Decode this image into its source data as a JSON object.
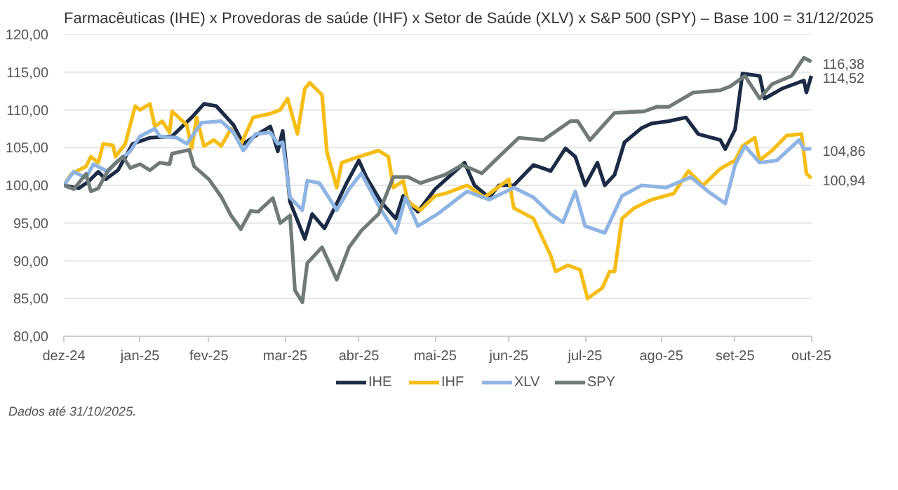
{
  "chart_data": {
    "type": "line",
    "title": "Farmacêuticas (IHE) x Provedoras de saúde (IHF) x Setor de Saúde (XLV) x S&P 500 (SPY) – Base 100 = 31/12/2025",
    "xlim": [
      "2024-12-31",
      "2025-10-31"
    ],
    "xticks": [
      {
        "value": "2024-12-31",
        "label": "dez-24"
      },
      {
        "value": "2025-01-31",
        "label": "jan-25"
      },
      {
        "value": "2025-02-28",
        "label": "fev-25"
      },
      {
        "value": "2025-03-31",
        "label": "mar-25"
      },
      {
        "value": "2025-04-30",
        "label": "abr-25"
      },
      {
        "value": "2025-05-31",
        "label": "mai-25"
      },
      {
        "value": "2025-06-30",
        "label": "jun-25"
      },
      {
        "value": "2025-07-31",
        "label": "jul-25"
      },
      {
        "value": "2025-08-31",
        "label": "ago-25"
      },
      {
        "value": "2025-09-30",
        "label": "set-25"
      },
      {
        "value": "2025-10-31",
        "label": "out-25"
      }
    ],
    "ylim": [
      80,
      120
    ],
    "yticks": [
      {
        "value": 80,
        "label": "80,00"
      },
      {
        "value": 85,
        "label": "85,00"
      },
      {
        "value": 90,
        "label": "90,00"
      },
      {
        "value": 95,
        "label": "95,00"
      },
      {
        "value": 100,
        "label": "100,00"
      },
      {
        "value": 105,
        "label": "105,00"
      },
      {
        "value": 110,
        "label": "110,00"
      },
      {
        "value": 115,
        "label": "115,00"
      },
      {
        "value": 120,
        "label": "120,00"
      }
    ],
    "grid": "y",
    "legend": "bottom",
    "line_style": "solid",
    "marker": "none",
    "series": [
      {
        "name": "IHE",
        "color": "#1c2b45",
        "x": [
          "2024-12-31",
          "2025-01-06",
          "2025-01-10",
          "2025-01-14",
          "2025-01-17",
          "2025-01-22",
          "2025-01-28",
          "2025-02-04",
          "2025-02-13",
          "2025-02-21",
          "2025-02-26",
          "2025-03-03",
          "2025-03-10",
          "2025-03-14",
          "2025-03-21",
          "2025-03-25",
          "2025-03-28",
          "2025-03-30",
          "2025-04-02",
          "2025-04-08",
          "2025-04-11",
          "2025-04-16",
          "2025-04-21",
          "2025-04-25",
          "2025-04-30",
          "2025-05-03",
          "2025-05-09",
          "2025-05-15",
          "2025-05-18",
          "2025-05-24",
          "2025-05-31",
          "2025-06-12",
          "2025-06-16",
          "2025-06-22",
          "2025-06-26",
          "2025-07-02",
          "2025-07-10",
          "2025-07-17",
          "2025-07-23",
          "2025-07-27",
          "2025-07-31",
          "2025-08-05",
          "2025-08-08",
          "2025-08-12",
          "2025-08-16",
          "2025-08-23",
          "2025-08-27",
          "2025-09-03",
          "2025-09-10",
          "2025-09-15",
          "2025-09-24",
          "2025-09-26",
          "2025-09-30",
          "2025-10-03",
          "2025-10-10",
          "2025-10-12",
          "2025-10-19",
          "2025-10-28",
          "2025-10-29",
          "2025-10-31"
        ],
        "values": [
          100,
          99.6,
          100.5,
          101.8,
          100.8,
          102.0,
          105.5,
          106.3,
          106.5,
          109.0,
          110.8,
          110.5,
          108.0,
          105.5,
          107.0,
          107.8,
          104.5,
          107.2,
          97.8,
          92.9,
          96.2,
          94.3,
          97.6,
          100.3,
          103.3,
          101.1,
          97.8,
          95.6,
          98.6,
          96.5,
          99.5,
          103.0,
          100.0,
          98.4,
          100.0,
          100.0,
          102.7,
          101.9,
          104.9,
          103.8,
          100.0,
          103.0,
          100.0,
          101.4,
          105.7,
          107.6,
          108.2,
          108.5,
          109.0,
          106.8,
          106.0,
          104.8,
          107.4,
          114.8,
          114.5,
          111.5,
          112.8,
          113.9,
          112.3,
          114.52
        ]
      },
      {
        "name": "IHF",
        "color": "#f6bd16",
        "x": [
          "2024-12-31",
          "2025-01-03",
          "2025-01-09",
          "2025-01-11",
          "2025-01-14",
          "2025-01-16",
          "2025-01-20",
          "2025-01-21",
          "2025-01-25",
          "2025-01-29",
          "2025-01-31",
          "2025-02-04",
          "2025-02-06",
          "2025-02-09",
          "2025-02-12",
          "2025-02-13",
          "2025-02-19",
          "2025-02-21",
          "2025-02-23",
          "2025-02-26",
          "2025-03-02",
          "2025-03-05",
          "2025-03-09",
          "2025-03-13",
          "2025-03-18",
          "2025-03-25",
          "2025-03-29",
          "2025-04-01",
          "2025-04-05",
          "2025-04-08",
          "2025-04-10",
          "2025-04-15",
          "2025-04-17",
          "2025-04-21",
          "2025-04-23",
          "2025-04-30",
          "2025-05-08",
          "2025-05-12",
          "2025-05-14",
          "2025-05-18",
          "2025-05-20",
          "2025-05-25",
          "2025-05-31",
          "2025-06-04",
          "2025-06-13",
          "2025-06-20",
          "2025-06-30",
          "2025-07-02",
          "2025-07-10",
          "2025-07-17",
          "2025-07-19",
          "2025-07-24",
          "2025-07-29",
          "2025-08-01",
          "2025-08-07",
          "2025-08-10",
          "2025-08-12",
          "2025-08-15",
          "2025-08-20",
          "2025-08-27",
          "2025-09-05",
          "2025-09-11",
          "2025-09-17",
          "2025-09-24",
          "2025-09-30",
          "2025-10-03",
          "2025-10-08",
          "2025-10-10",
          "2025-10-15",
          "2025-10-21",
          "2025-10-27",
          "2025-10-29",
          "2025-10-31"
        ],
        "values": [
          100,
          101.5,
          102.5,
          103.8,
          103.0,
          105.5,
          105.3,
          103.8,
          105.5,
          110.5,
          110.0,
          110.8,
          107.8,
          108.5,
          107.0,
          109.8,
          108.0,
          104.9,
          109.0,
          105.2,
          106.0,
          105.2,
          107.5,
          105.4,
          109.0,
          109.5,
          110.0,
          111.5,
          106.8,
          112.8,
          113.6,
          112.0,
          104.4,
          99.7,
          103.0,
          103.8,
          104.6,
          103.8,
          99.7,
          100.6,
          97.8,
          96.7,
          98.6,
          98.9,
          100.0,
          98.4,
          100.8,
          97.0,
          95.6,
          90.7,
          88.6,
          89.4,
          88.8,
          85.0,
          86.4,
          88.6,
          88.6,
          95.6,
          97.0,
          98.1,
          98.9,
          101.9,
          100.0,
          102.2,
          103.3,
          105.2,
          106.3,
          103.3,
          104.6,
          106.6,
          106.8,
          101.6,
          100.94
        ]
      },
      {
        "name": "XLV",
        "color": "#8eb4e3",
        "x": [
          "2024-12-31",
          "2025-01-04",
          "2025-01-09",
          "2025-01-12",
          "2025-01-18",
          "2025-01-21",
          "2025-01-27",
          "2025-01-31",
          "2025-02-06",
          "2025-02-08",
          "2025-02-15",
          "2025-02-19",
          "2025-02-25",
          "2025-03-05",
          "2025-03-10",
          "2025-03-14",
          "2025-03-19",
          "2025-03-25",
          "2025-03-28",
          "2025-03-30",
          "2025-04-02",
          "2025-04-07",
          "2025-04-09",
          "2025-04-14",
          "2025-04-21",
          "2025-04-26",
          "2025-05-01",
          "2025-05-08",
          "2025-05-15",
          "2025-05-19",
          "2025-05-24",
          "2025-06-01",
          "2025-06-13",
          "2025-06-22",
          "2025-07-02",
          "2025-07-10",
          "2025-07-17",
          "2025-07-22",
          "2025-07-27",
          "2025-07-31",
          "2025-08-08",
          "2025-08-15",
          "2025-08-23",
          "2025-09-02",
          "2025-09-12",
          "2025-09-19",
          "2025-09-26",
          "2025-09-30",
          "2025-10-04",
          "2025-10-10",
          "2025-10-17",
          "2025-10-26",
          "2025-10-28",
          "2025-10-31"
        ],
        "values": [
          100,
          101.8,
          101.0,
          102.8,
          101.8,
          103.0,
          104.5,
          106.5,
          107.5,
          106.5,
          106.3,
          105.5,
          108.3,
          108.5,
          107.0,
          104.6,
          106.8,
          107.0,
          105.5,
          105.7,
          98.4,
          96.7,
          100.6,
          100.3,
          96.7,
          99.5,
          101.6,
          97.3,
          93.7,
          98.4,
          94.6,
          96.2,
          99.2,
          98.1,
          99.7,
          98.4,
          96.2,
          95.1,
          99.2,
          94.6,
          93.7,
          98.6,
          100.0,
          99.7,
          101.1,
          99.2,
          97.6,
          102.7,
          105.2,
          103.0,
          103.3,
          106.0,
          104.8,
          104.86
        ]
      },
      {
        "name": "SPY",
        "color": "#707a78",
        "x": [
          "2024-12-31",
          "2025-01-04",
          "2025-01-09",
          "2025-01-11",
          "2025-01-14",
          "2025-01-18",
          "2025-01-24",
          "2025-01-27",
          "2025-01-31",
          "2025-02-04",
          "2025-02-08",
          "2025-02-12",
          "2025-02-13",
          "2025-02-20",
          "2025-02-22",
          "2025-02-28",
          "2025-03-05",
          "2025-03-09",
          "2025-03-13",
          "2025-03-17",
          "2025-03-20",
          "2025-03-26",
          "2025-03-29",
          "2025-04-02",
          "2025-04-04",
          "2025-04-07",
          "2025-04-09",
          "2025-04-15",
          "2025-04-21",
          "2025-04-26",
          "2025-05-01",
          "2025-05-08",
          "2025-05-14",
          "2025-05-20",
          "2025-05-25",
          "2025-06-04",
          "2025-06-11",
          "2025-06-19",
          "2025-06-26",
          "2025-07-04",
          "2025-07-14",
          "2025-07-25",
          "2025-07-28",
          "2025-08-02",
          "2025-08-12",
          "2025-08-24",
          "2025-08-29",
          "2025-09-03",
          "2025-09-13",
          "2025-09-24",
          "2025-09-28",
          "2025-10-04",
          "2025-10-10",
          "2025-10-15",
          "2025-10-23",
          "2025-10-28",
          "2025-10-31"
        ],
        "values": [
          100,
          99.5,
          101.5,
          99.2,
          99.6,
          102.0,
          103.8,
          102.3,
          102.8,
          102.0,
          103.0,
          102.8,
          104.2,
          104.7,
          102.5,
          100.8,
          98.5,
          96.0,
          94.2,
          96.6,
          96.5,
          98.3,
          95.0,
          96.0,
          86.1,
          84.5,
          89.7,
          91.8,
          87.5,
          91.8,
          94.0,
          96.2,
          101.1,
          101.1,
          100.3,
          101.4,
          102.7,
          101.6,
          103.8,
          106.3,
          106.0,
          108.5,
          108.5,
          106.0,
          109.6,
          109.8,
          110.4,
          110.4,
          112.3,
          112.6,
          113.1,
          114.5,
          111.5,
          113.4,
          114.5,
          116.9,
          116.38
        ]
      }
    ],
    "annotations": [
      {
        "text": "116,38",
        "x": "2025-10-31",
        "y": 116.38
      },
      {
        "text": "114,52",
        "x": "2025-10-31",
        "y": 114.52
      },
      {
        "text": "104,86",
        "x": "2025-10-31",
        "y": 104.86
      },
      {
        "text": "100,94",
        "x": "2025-10-31",
        "y": 100.94
      },
      "Dados até 31/10/2025."
    ]
  }
}
